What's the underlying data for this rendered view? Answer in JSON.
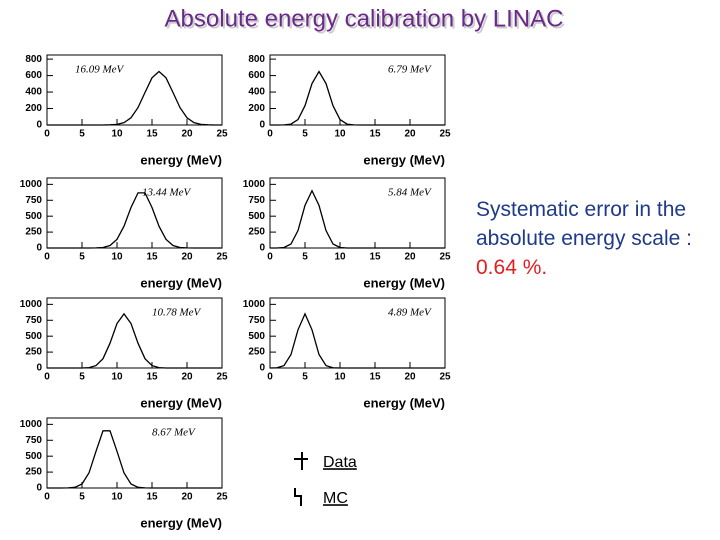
{
  "title": "Absolute energy calibration by LINAC",
  "note": {
    "text": "Systematic error in the absolute energy scale : ",
    "value_text": "0.64 %."
  },
  "legend": {
    "items": [
      "Data",
      "MC"
    ]
  },
  "chart_data": [
    {
      "type": "line",
      "annotation": "16.09 MeV",
      "xlabel": "energy (MeV)",
      "xlim": [
        0,
        25
      ],
      "xticks": [
        0,
        5,
        10,
        15,
        20,
        25
      ],
      "ylim": [
        0,
        850
      ],
      "yticks": [
        0,
        200,
        400,
        600,
        800
      ],
      "x": [
        0,
        1,
        2,
        3,
        4,
        5,
        6,
        7,
        8,
        9,
        10,
        11,
        12,
        13,
        14,
        15,
        16,
        17,
        18,
        19,
        20,
        21,
        22,
        23,
        24,
        25
      ],
      "series": [
        {
          "color": "#000000",
          "values": [
            0,
            0,
            0,
            0,
            0,
            0,
            0,
            0,
            0,
            2,
            7,
            29,
            88,
            211,
            395,
            573,
            650,
            573,
            395,
            211,
            88,
            29,
            7,
            2,
            0,
            0
          ]
        }
      ]
    },
    {
      "type": "line",
      "annotation": "6.79 MeV",
      "xlabel": "energy (MeV)",
      "xlim": [
        0,
        25
      ],
      "xticks": [
        0,
        5,
        10,
        15,
        20,
        25
      ],
      "ylim": [
        0,
        850
      ],
      "yticks": [
        0,
        200,
        400,
        600,
        800
      ],
      "x": [
        0,
        1,
        2,
        3,
        4,
        5,
        6,
        7,
        8,
        9,
        10,
        11,
        12,
        13,
        14,
        15,
        16,
        17,
        18,
        19,
        20,
        21,
        22,
        23,
        24,
        25
      ],
      "series": [
        {
          "color": "#000000",
          "values": [
            0,
            0,
            1,
            11,
            65,
            234,
            504,
            650,
            504,
            234,
            65,
            11,
            1,
            0,
            0,
            0,
            0,
            0,
            0,
            0,
            0,
            0,
            0,
            0,
            0,
            0
          ]
        }
      ]
    },
    {
      "type": "line",
      "annotation": "13.44 MeV",
      "xlabel": "energy (MeV)",
      "xlim": [
        0,
        25
      ],
      "xticks": [
        0,
        5,
        10,
        15,
        20,
        25
      ],
      "ylim": [
        0,
        1100
      ],
      "yticks": [
        0,
        250,
        500,
        750,
        1000
      ],
      "x": [
        0,
        1,
        2,
        3,
        4,
        5,
        6,
        7,
        8,
        9,
        10,
        11,
        12,
        13,
        14,
        15,
        16,
        17,
        18,
        19,
        20,
        21,
        22,
        23,
        24,
        25
      ],
      "series": [
        {
          "color": "#000000",
          "values": [
            0,
            0,
            0,
            0,
            0,
            0,
            0,
            1,
            8,
            40,
            136,
            343,
            636,
            866,
            866,
            636,
            343,
            136,
            40,
            8,
            1,
            0,
            0,
            0,
            0,
            0
          ]
        }
      ]
    },
    {
      "type": "line",
      "annotation": "5.84 MeV",
      "xlabel": "energy (MeV)",
      "xlim": [
        0,
        25
      ],
      "xticks": [
        0,
        5,
        10,
        15,
        20,
        25
      ],
      "ylim": [
        0,
        1100
      ],
      "yticks": [
        0,
        250,
        500,
        750,
        1000
      ],
      "x": [
        0,
        1,
        2,
        3,
        4,
        5,
        6,
        7,
        8,
        9,
        10,
        11,
        12,
        13,
        14,
        15,
        16,
        17,
        18,
        19,
        20,
        21,
        22,
        23,
        24,
        25
      ],
      "series": [
        {
          "color": "#000000",
          "values": [
            0,
            0,
            8,
            63,
            275,
            669,
            900,
            669,
            275,
            63,
            8,
            0,
            0,
            0,
            0,
            0,
            0,
            0,
            0,
            0,
            0,
            0,
            0,
            0,
            0,
            0
          ]
        }
      ]
    },
    {
      "type": "line",
      "annotation": "10.78 MeV",
      "xlabel": "energy (MeV)",
      "xlim": [
        0,
        25
      ],
      "xticks": [
        0,
        5,
        10,
        15,
        20,
        25
      ],
      "ylim": [
        0,
        1100
      ],
      "yticks": [
        0,
        250,
        500,
        750,
        1000
      ],
      "x": [
        0,
        1,
        2,
        3,
        4,
        5,
        6,
        7,
        8,
        9,
        10,
        11,
        12,
        13,
        14,
        15,
        16,
        17,
        18,
        19,
        20,
        21,
        22,
        23,
        24,
        25
      ],
      "series": [
        {
          "color": "#000000",
          "values": [
            0,
            0,
            0,
            0,
            0,
            0,
            6,
            37,
            146,
            389,
            699,
            850,
            699,
            389,
            146,
            37,
            6,
            0,
            0,
            0,
            0,
            0,
            0,
            0,
            0,
            0
          ]
        }
      ]
    },
    {
      "type": "line",
      "annotation": "4.89 MeV",
      "xlabel": "energy (MeV)",
      "xlim": [
        0,
        25
      ],
      "xticks": [
        0,
        5,
        10,
        15,
        20,
        25
      ],
      "ylim": [
        0,
        1100
      ],
      "yticks": [
        0,
        250,
        500,
        750,
        1000
      ],
      "x": [
        0,
        1,
        2,
        3,
        4,
        5,
        6,
        7,
        8,
        9,
        10,
        11,
        12,
        13,
        14,
        15,
        16,
        17,
        18,
        19,
        20,
        21,
        22,
        23,
        24,
        25
      ],
      "series": [
        {
          "color": "#000000",
          "values": [
            0,
            3,
            37,
            212,
            601,
            850,
            601,
            212,
            37,
            3,
            0,
            0,
            0,
            0,
            0,
            0,
            0,
            0,
            0,
            0,
            0,
            0,
            0,
            0,
            0,
            0
          ]
        }
      ]
    },
    {
      "type": "line",
      "annotation": "8.67 MeV",
      "xlabel": "energy (MeV)",
      "xlim": [
        0,
        25
      ],
      "xticks": [
        0,
        5,
        10,
        15,
        20,
        25
      ],
      "ylim": [
        0,
        1100
      ],
      "yticks": [
        0,
        250,
        500,
        750,
        1000
      ],
      "x": [
        0,
        1,
        2,
        3,
        4,
        5,
        6,
        7,
        8,
        9,
        10,
        11,
        12,
        13,
        14,
        15,
        16,
        17,
        18,
        19,
        20,
        21,
        22,
        23,
        24,
        25
      ],
      "series": [
        {
          "color": "#000000",
          "values": [
            0,
            0,
            0,
            1,
            11,
            63,
            237,
            576,
            899,
            899,
            576,
            237,
            63,
            11,
            1,
            0,
            0,
            0,
            0,
            0,
            0,
            0,
            0,
            0,
            0,
            0
          ]
        }
      ]
    }
  ]
}
